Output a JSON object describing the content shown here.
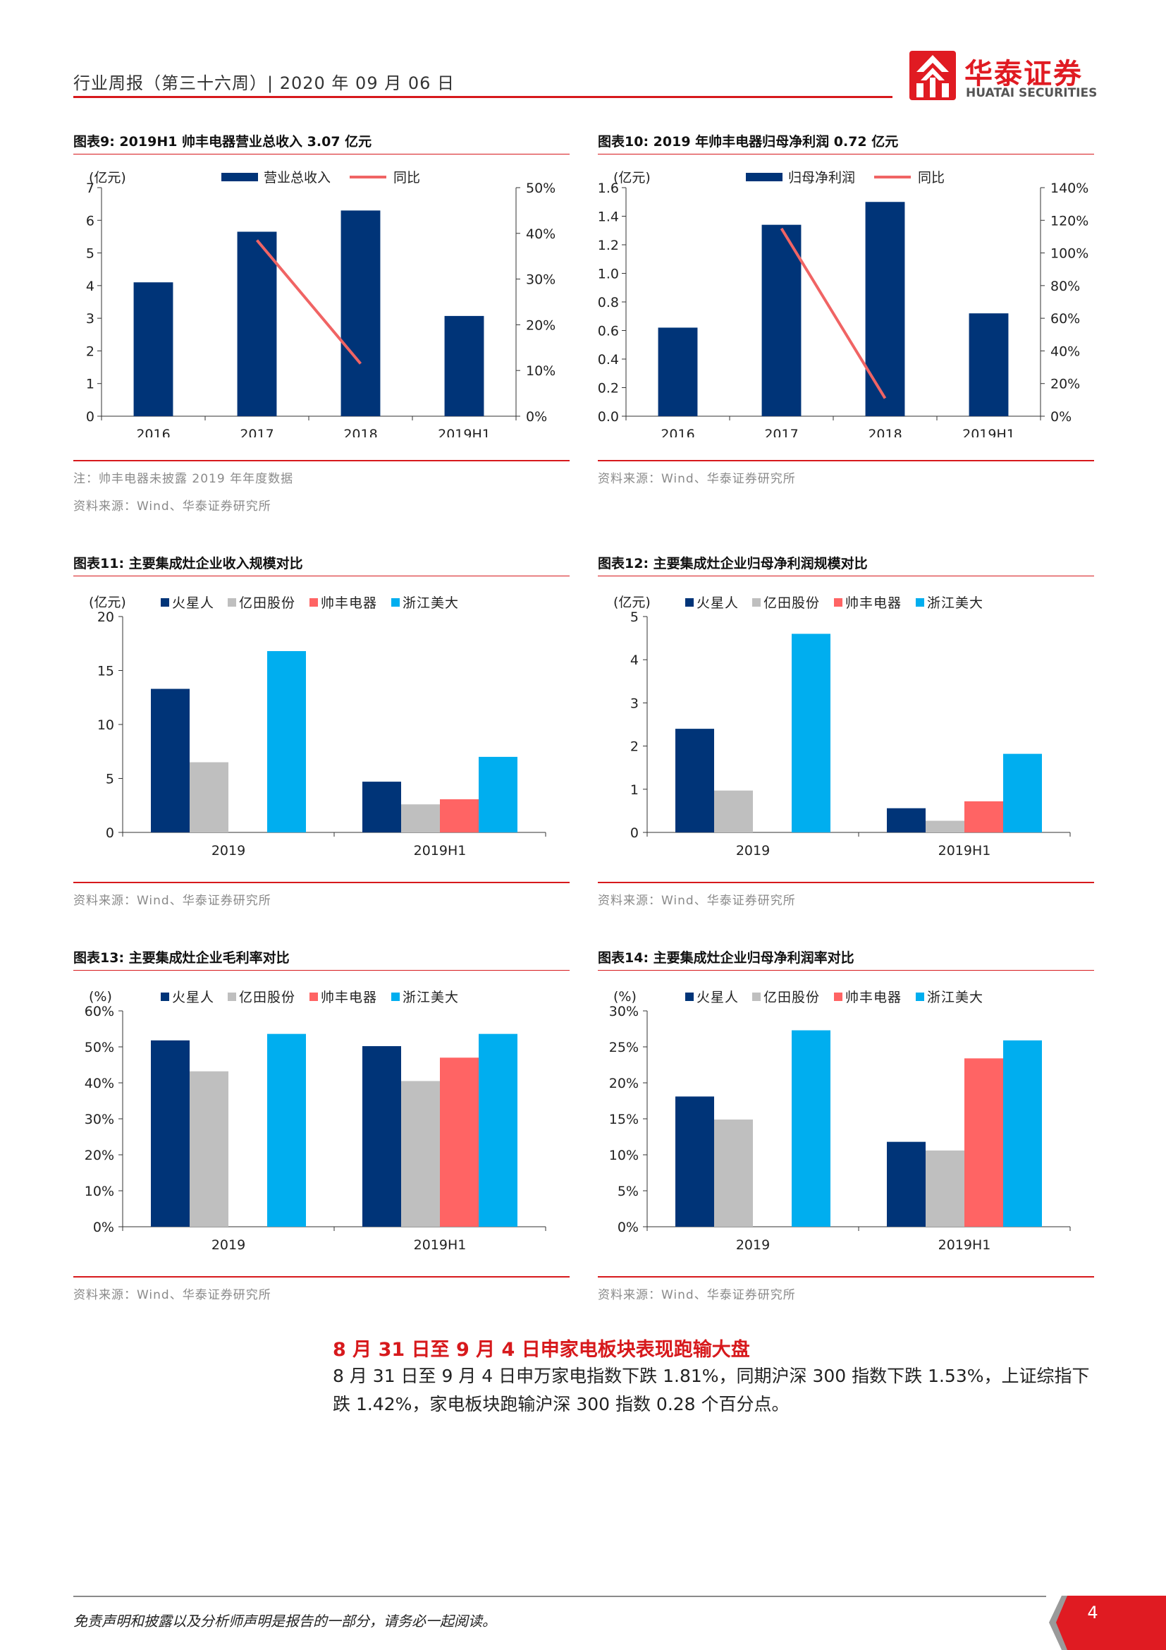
{
  "header": {
    "text": "行业周报（第三十六周）| 2020 年 09 月 06 日",
    "logo_cn": "华泰证券",
    "logo_en": "HUATAI SECURITIES"
  },
  "colors": {
    "navy": "#003478",
    "gray": "#BFBFBF",
    "red": "#FF6464",
    "cyan": "#00AEEF",
    "line": "#F06464",
    "accent": "#D7191C"
  },
  "figures": [
    {
      "title": "图表9:    2019H1 帅丰电器营业总收入 3.07 亿元",
      "notes": [
        "注：帅丰电器未披露 2019 年年度数据",
        "资料来源：Wind、华泰证券研究所"
      ]
    },
    {
      "title": "图表10:    2019 年帅丰电器归母净利润 0.72 亿元",
      "notes": [
        "资料来源：Wind、华泰证券研究所"
      ]
    },
    {
      "title": "图表11:    主要集成灶企业收入规模对比",
      "notes": [
        "资料来源：Wind、华泰证券研究所"
      ]
    },
    {
      "title": "图表12:    主要集成灶企业归母净利润规模对比",
      "notes": [
        "资料来源：Wind、华泰证券研究所"
      ]
    },
    {
      "title": "图表13:    主要集成灶企业毛利率对比",
      "notes": [
        "资料来源：Wind、华泰证券研究所"
      ]
    },
    {
      "title": "图表14:    主要集成灶企业归母净利润率对比",
      "notes": [
        "资料来源：Wind、华泰证券研究所"
      ]
    }
  ],
  "chart_data": [
    {
      "type": "bar",
      "unit_label": "(亿元)",
      "categories": [
        "2016",
        "2017",
        "2018",
        "2019H1"
      ],
      "ylim": [
        0,
        7
      ],
      "yticks": [
        "0",
        "1",
        "2",
        "3",
        "4",
        "5",
        "6",
        "7"
      ],
      "y2lim": [
        0,
        50
      ],
      "y2ticks": [
        "0%",
        "10%",
        "20%",
        "30%",
        "40%",
        "50%"
      ],
      "series": [
        {
          "name": "营业总收入",
          "kind": "bar",
          "axis": "left",
          "values": [
            4.1,
            5.65,
            6.3,
            3.07
          ]
        },
        {
          "name": "同比",
          "kind": "line",
          "axis": "right",
          "values": [
            null,
            38.5,
            11.5,
            null
          ]
        }
      ]
    },
    {
      "type": "bar",
      "unit_label": "(亿元)",
      "categories": [
        "2016",
        "2017",
        "2018",
        "2019H1"
      ],
      "ylim": [
        0,
        1.6
      ],
      "yticks": [
        "0.0",
        "0.2",
        "0.4",
        "0.6",
        "0.8",
        "1.0",
        "1.2",
        "1.4",
        "1.6"
      ],
      "y2lim": [
        0,
        140
      ],
      "y2ticks": [
        "0%",
        "20%",
        "40%",
        "60%",
        "80%",
        "100%",
        "120%",
        "140%"
      ],
      "series": [
        {
          "name": "归母净利润",
          "kind": "bar",
          "axis": "left",
          "values": [
            0.62,
            1.34,
            1.5,
            0.72
          ]
        },
        {
          "name": "同比",
          "kind": "line",
          "axis": "right",
          "values": [
            null,
            115,
            11,
            null
          ]
        }
      ]
    },
    {
      "type": "bar",
      "unit_label": "(亿元)",
      "categories": [
        "2019",
        "2019H1"
      ],
      "ylim": [
        0,
        20
      ],
      "yticks": [
        "0",
        "5",
        "10",
        "15",
        "20"
      ],
      "series": [
        {
          "name": "火星人",
          "values": [
            13.3,
            4.7
          ]
        },
        {
          "name": "亿田股份",
          "values": [
            6.5,
            2.6
          ]
        },
        {
          "name": "帅丰电器",
          "values": [
            null,
            3.07
          ]
        },
        {
          "name": "浙江美大",
          "values": [
            16.8,
            7.0
          ]
        }
      ]
    },
    {
      "type": "bar",
      "unit_label": "(亿元)",
      "categories": [
        "2019",
        "2019H1"
      ],
      "ylim": [
        0,
        5
      ],
      "yticks": [
        "0",
        "1",
        "2",
        "3",
        "4",
        "5"
      ],
      "series": [
        {
          "name": "火星人",
          "values": [
            2.4,
            0.56
          ]
        },
        {
          "name": "亿田股份",
          "values": [
            0.97,
            0.27
          ]
        },
        {
          "name": "帅丰电器",
          "values": [
            null,
            0.72
          ]
        },
        {
          "name": "浙江美大",
          "values": [
            4.6,
            1.82
          ]
        }
      ]
    },
    {
      "type": "bar",
      "unit_label": "(%)",
      "categories": [
        "2019",
        "2019H1"
      ],
      "ylim": [
        0,
        60
      ],
      "yticks": [
        "0%",
        "10%",
        "20%",
        "30%",
        "40%",
        "50%",
        "60%"
      ],
      "series": [
        {
          "name": "火星人",
          "values": [
            51.8,
            50.2
          ]
        },
        {
          "name": "亿田股份",
          "values": [
            43.2,
            40.5
          ]
        },
        {
          "name": "帅丰电器",
          "values": [
            null,
            47.0
          ]
        },
        {
          "name": "浙江美大",
          "values": [
            53.6,
            53.6
          ]
        }
      ]
    },
    {
      "type": "bar",
      "unit_label": "(%)",
      "categories": [
        "2019",
        "2019H1"
      ],
      "ylim": [
        0,
        30
      ],
      "yticks": [
        "0%",
        "5%",
        "10%",
        "15%",
        "20%",
        "25%",
        "30%"
      ],
      "series": [
        {
          "name": "火星人",
          "values": [
            18.1,
            11.8
          ]
        },
        {
          "name": "亿田股份",
          "values": [
            14.9,
            10.6
          ]
        },
        {
          "name": "帅丰电器",
          "values": [
            null,
            23.4
          ]
        },
        {
          "name": "浙江美大",
          "values": [
            27.3,
            25.9
          ]
        }
      ]
    }
  ],
  "section": {
    "title": "8 月 31 日至 9 月 4 日申家电板块表现跑输大盘",
    "body": "8 月 31 日至 9 月 4 日申万家电指数下跌 1.81%，同期沪深 300 指数下跌 1.53%，上证综指下跌 1.42%，家电板块跑输沪深 300 指数 0.28 个百分点。"
  },
  "footer": {
    "disclaimer": "免责声明和披露以及分析师声明是报告的一部分，请务必一起阅读。",
    "page": "4"
  }
}
